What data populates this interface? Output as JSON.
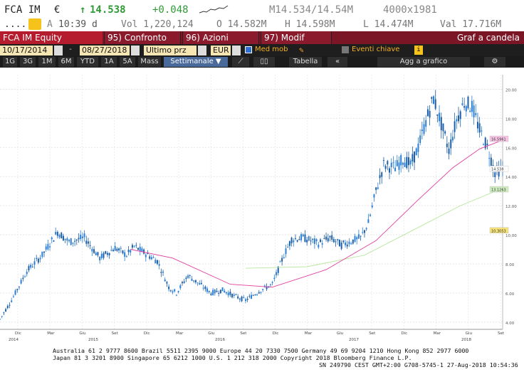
{
  "quote": {
    "ticker": "FCA IM",
    "currency": "€",
    "arrow": "↑",
    "last": "14.538",
    "change": "+0.048",
    "range_label": "M14.534/14.54M",
    "size": "4000x1981",
    "status": "A",
    "time": "10:39 d",
    "vol": "Vol 1,220,124",
    "open": "O 14.582M",
    "high": "H 14.598M",
    "low": "L 14.474M",
    "val": "Val 17.716M"
  },
  "toolbar": {
    "security": "FCA IM Equity",
    "menus": [
      "95) Confronto",
      "96) Azioni",
      "97) Modif"
    ],
    "chart_title": "Graf a candela"
  },
  "dates": {
    "start": "10/17/2014",
    "end": "08/27/2018",
    "price_field": "Ultimo prz",
    "currency": "EUR",
    "moving_avg": "Med mob",
    "key_events": "Eventi chiave"
  },
  "tools": {
    "periods": [
      "1G",
      "3G",
      "1M",
      "6M",
      "YTD",
      "1A",
      "5A",
      "Mass"
    ],
    "frequency": "Settimanale ▼",
    "table": "Tabella",
    "add": "Agg a grafico"
  },
  "chart_data": {
    "type": "candlestick",
    "frequency": "weekly",
    "y_ticks": [
      4,
      6,
      8,
      10,
      12,
      14,
      16,
      18,
      20
    ],
    "ylim": [
      3.5,
      21
    ],
    "x_ticks": [
      "Dic",
      "Mar",
      "Giu",
      "Set",
      "Dic",
      "Mar",
      "Giu",
      "Set",
      "Dic",
      "Mar",
      "Giu",
      "Set",
      "Dic",
      "Mar",
      "Giu",
      "Set"
    ],
    "year_ticks": [
      "2014",
      "2015",
      "2016",
      "2017",
      "2018"
    ],
    "price_points": [
      [
        0,
        4.2
      ],
      [
        6,
        5.5
      ],
      [
        14,
        7.5
      ],
      [
        22,
        8.6
      ],
      [
        30,
        10.2
      ],
      [
        36,
        9.5
      ],
      [
        44,
        9.8
      ],
      [
        52,
        8.4
      ],
      [
        60,
        9.1
      ],
      [
        66,
        8.6
      ],
      [
        70,
        9.2
      ],
      [
        76,
        8.7
      ],
      [
        82,
        8.2
      ],
      [
        88,
        6.4
      ],
      [
        92,
        6.0
      ],
      [
        98,
        7.2
      ],
      [
        104,
        6.6
      ],
      [
        110,
        6.0
      ],
      [
        116,
        6.2
      ],
      [
        122,
        5.8
      ],
      [
        128,
        5.5
      ],
      [
        136,
        6.2
      ],
      [
        142,
        6.6
      ],
      [
        148,
        8.6
      ],
      [
        152,
        9.7
      ],
      [
        158,
        9.8
      ],
      [
        166,
        9.4
      ],
      [
        172,
        9.8
      ],
      [
        178,
        9.3
      ],
      [
        184,
        9.6
      ],
      [
        188,
        9.8
      ],
      [
        192,
        10.8
      ],
      [
        196,
        13.0
      ],
      [
        200,
        14.8
      ],
      [
        206,
        14.6
      ],
      [
        210,
        15.2
      ],
      [
        214,
        14.8
      ],
      [
        218,
        16.0
      ],
      [
        222,
        17.8
      ],
      [
        226,
        19.4
      ],
      [
        230,
        17.6
      ],
      [
        234,
        15.8
      ],
      [
        238,
        17.9
      ],
      [
        242,
        19.1
      ],
      [
        246,
        18.8
      ],
      [
        250,
        17.2
      ],
      [
        254,
        16.0
      ],
      [
        258,
        14.3
      ],
      [
        262,
        14.538
      ]
    ],
    "ma_fast": [
      [
        68,
        9.0
      ],
      [
        90,
        8.4
      ],
      [
        120,
        6.6
      ],
      [
        142,
        6.4
      ],
      [
        170,
        7.6
      ],
      [
        196,
        9.6
      ],
      [
        218,
        12.4
      ],
      [
        236,
        14.6
      ],
      [
        250,
        15.9
      ],
      [
        262,
        16.5
      ]
    ],
    "ma_slow": [
      [
        128,
        7.7
      ],
      [
        160,
        7.8
      ],
      [
        190,
        8.6
      ],
      [
        218,
        10.5
      ],
      [
        240,
        12.0
      ],
      [
        262,
        13.2
      ]
    ],
    "labels": {
      "last": "14.538",
      "ma_fast": "16.5961",
      "ma_slow": "13.1263",
      "third": "10.3053"
    },
    "colors": {
      "up": "#2c7fd6",
      "down": "#1d5fa9",
      "ma_fast": "#e040a0",
      "ma_slow": "#b9e6a0",
      "last_bg": "#ffffff",
      "ma_fast_bg": "#f7c4e6",
      "ma_slow_bg": "#cfeec0",
      "third_bg": "#f7e27a"
    }
  },
  "footer": {
    "line1": "Australia 61 2 9777 8600 Brazil 5511 2395 9000 Europe 44 20 7330 7500 Germany 49 69 9204 1210 Hong Kong 852 2977 6000",
    "line2": "Japan 81 3 3201 8900       Singapore 65 6212 1000       U.S. 1 212 318 2000          Copyright 2018 Bloomberg Finance L.P.",
    "line3": "SN 249790 CEST GMT+2:00 G708-5745-1 27-Aug-2018 10:54:36"
  }
}
